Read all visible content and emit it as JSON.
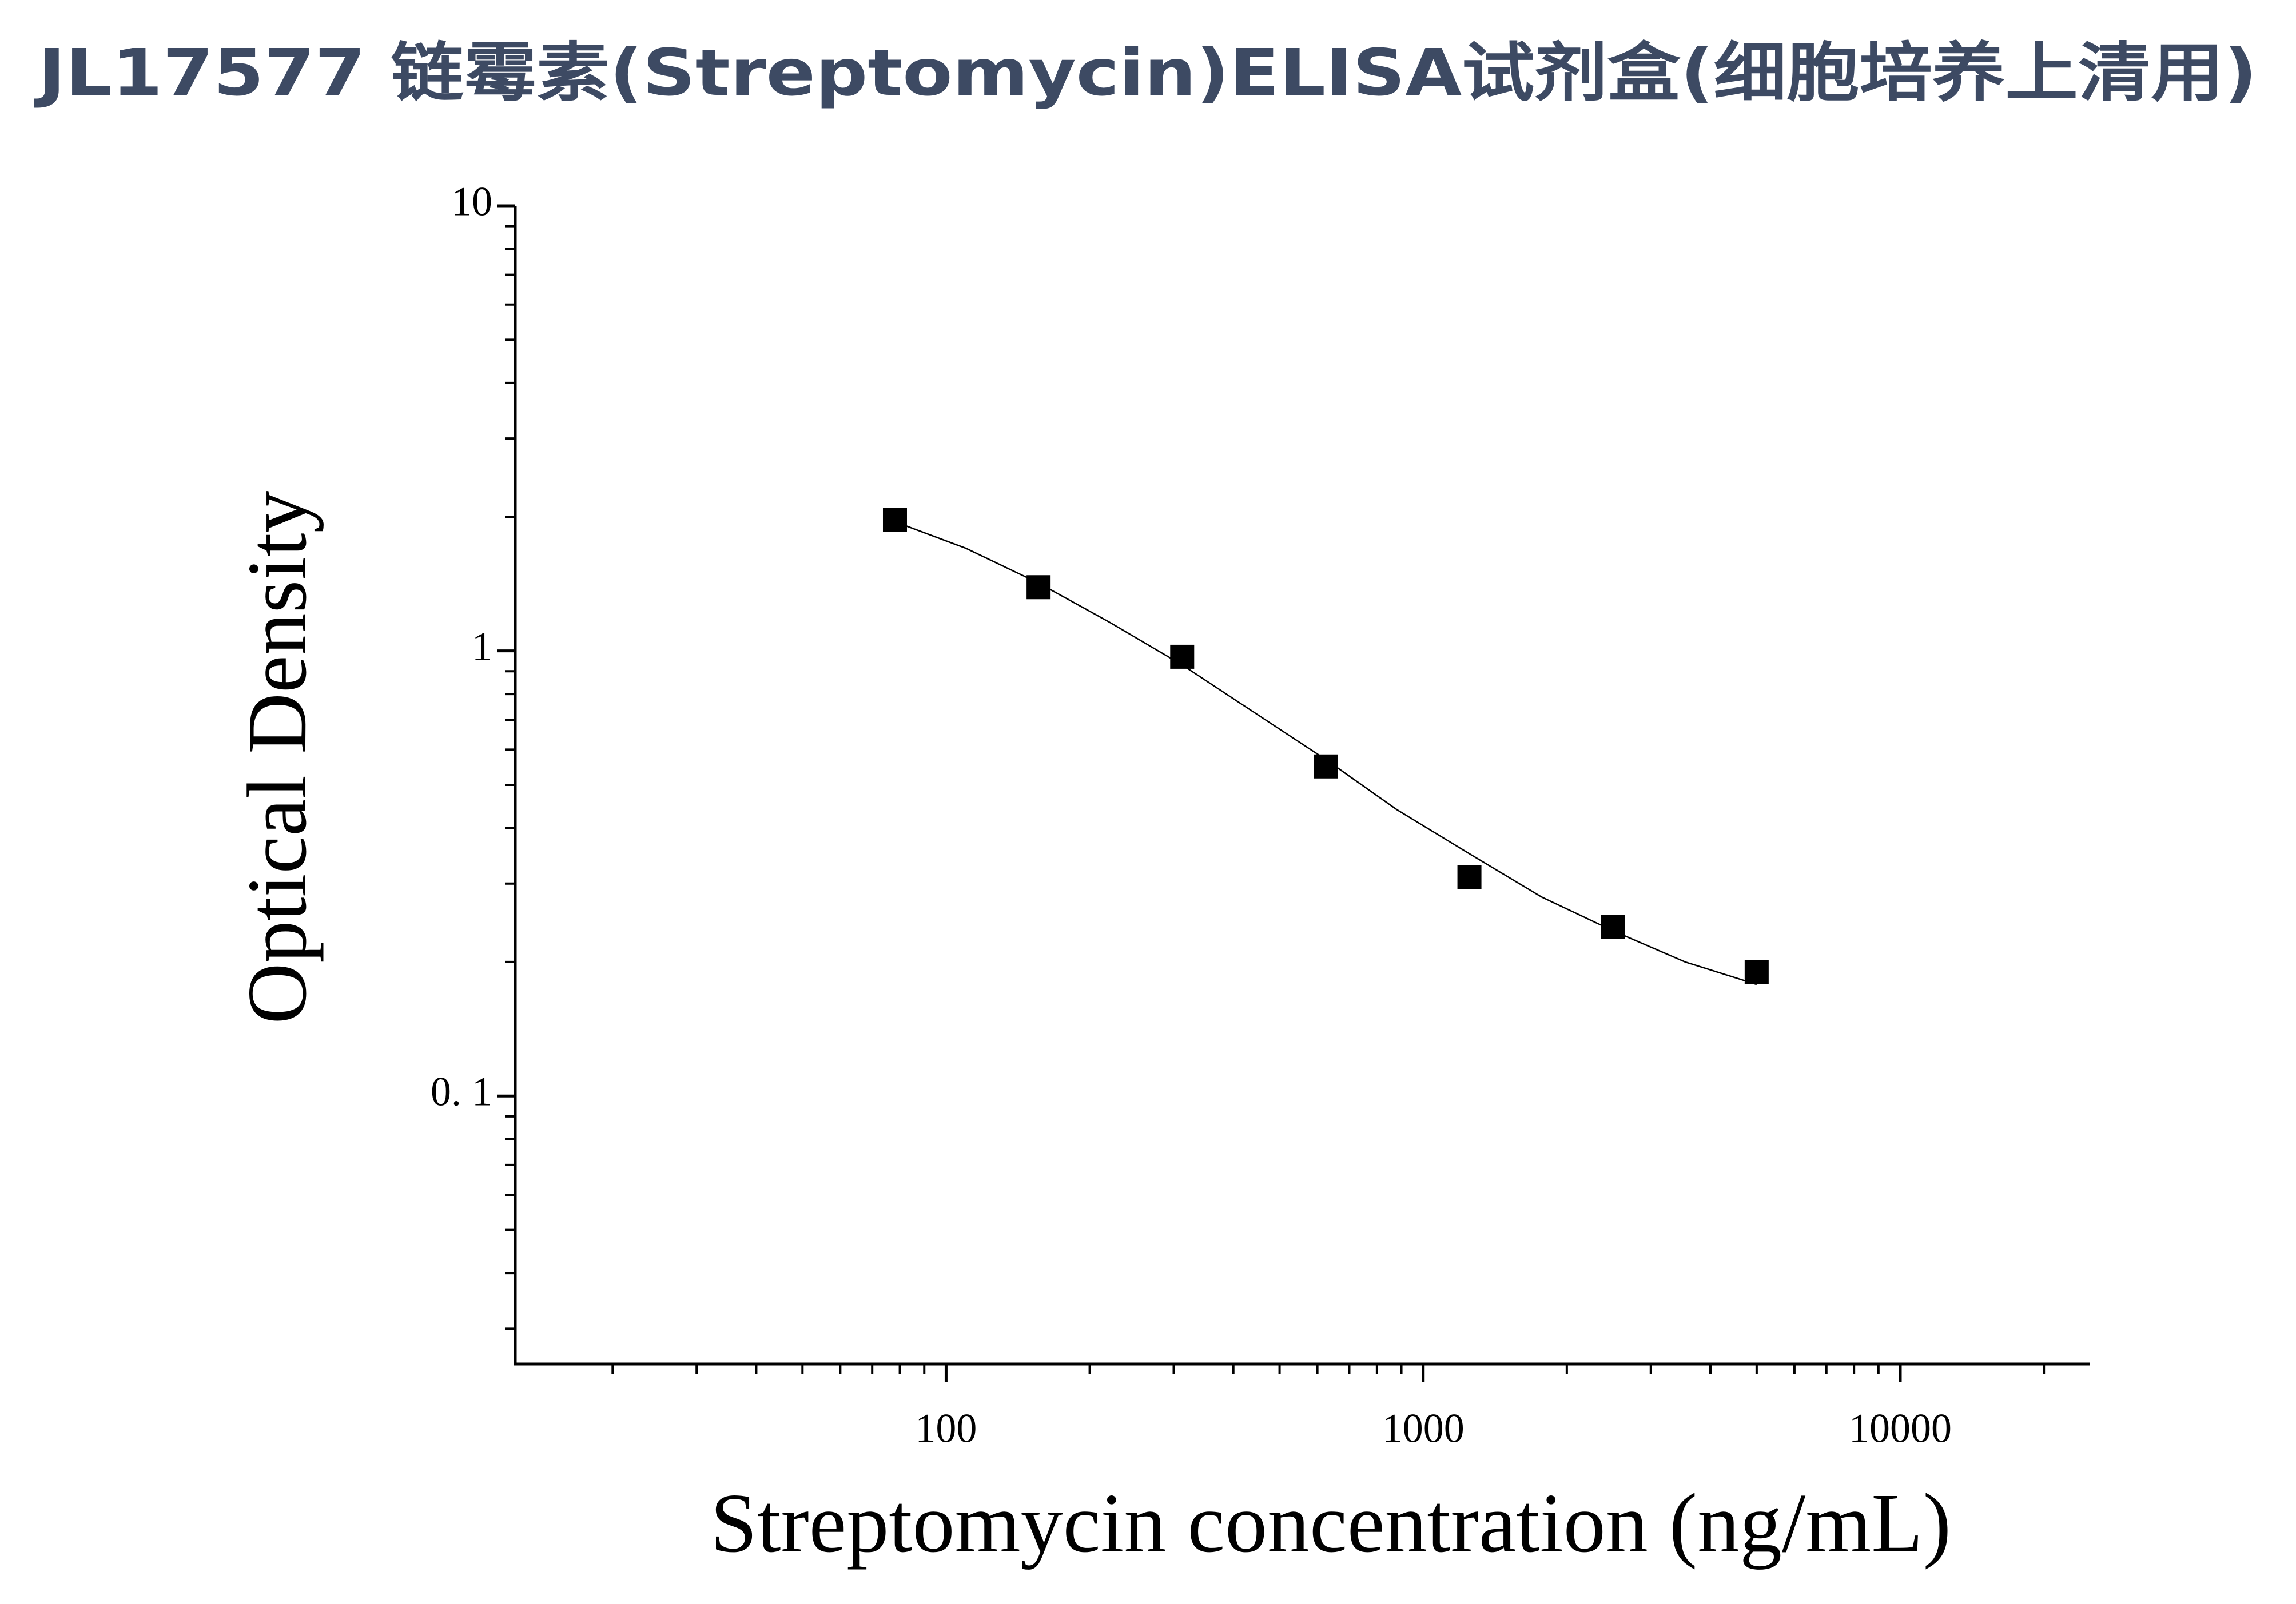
{
  "chart_data": {
    "type": "scatter",
    "title": "JL17577 链霉素(Streptomycin)ELISA试剂盒(细胞培养上清用)",
    "x_label": "Streptomycin concentration (ng/mL)",
    "y_label": "Optical Density",
    "x_log": true,
    "y_log": true,
    "xlim": [
      12.5,
      25000
    ],
    "ylim": [
      0.025,
      10
    ],
    "xticks": [
      100,
      1000,
      10000
    ],
    "yticks": [
      10,
      1,
      {
        "value": 0.1,
        "label": "0. 1"
      }
    ],
    "xminorticks": [
      20,
      30,
      40,
      50,
      60,
      70,
      80,
      90,
      200,
      300,
      400,
      500,
      600,
      700,
      800,
      900,
      2000,
      3000,
      4000,
      5000,
      6000,
      7000,
      8000,
      9000,
      20000
    ],
    "yminorticks": [
      0.03,
      0.04,
      0.05,
      0.06,
      0.07,
      0.08,
      0.09,
      0.2,
      0.3,
      0.4,
      0.5,
      0.6,
      0.7,
      0.8,
      0.9,
      2,
      3,
      4,
      5,
      6,
      7,
      8,
      9
    ],
    "series": [
      {
        "kind": "points",
        "color": "#000000",
        "x": [
          78.125,
          156.25,
          312.5,
          625,
          1250,
          2500,
          5000
        ],
        "values": [
          1.97,
          1.39,
          0.97,
          0.55,
          0.31,
          0.24,
          0.19
        ]
      },
      {
        "kind": "line",
        "color": "#000000",
        "x": [
          78.125,
          110,
          156.25,
          220,
          312.5,
          440,
          625,
          880,
          1250,
          1770,
          2500,
          3540,
          5000
        ],
        "values": [
          1.95,
          1.7,
          1.42,
          1.16,
          0.93,
          0.73,
          0.57,
          0.44,
          0.35,
          0.28,
          0.235,
          0.2,
          0.178
        ]
      }
    ]
  }
}
